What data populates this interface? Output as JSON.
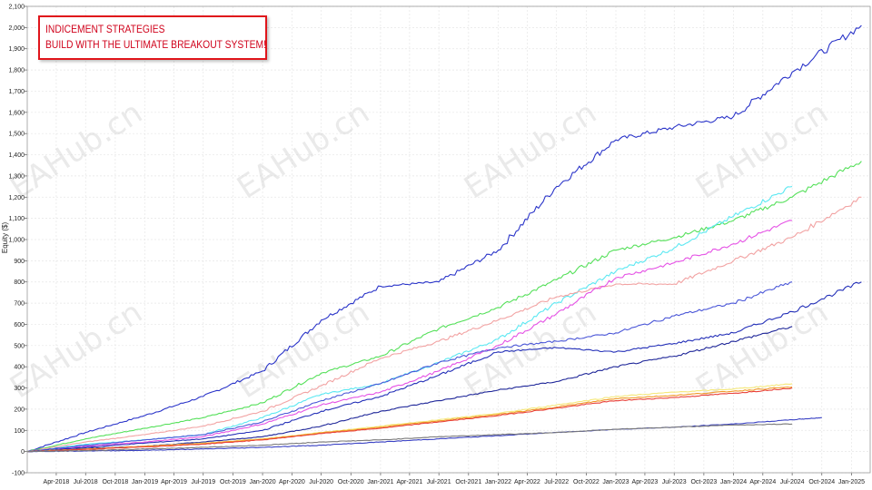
{
  "chart_data": {
    "type": "line",
    "title_lines": [
      "INDICEMENT STRATEGIES",
      "BUILD WITH THE ULTIMATE BREAKOUT SYSTEM!"
    ],
    "ylabel": "Equity ($)",
    "ylim": [
      -100,
      2100
    ],
    "y_ticks": [
      "-100",
      "0",
      "100",
      "200",
      "300",
      "400",
      "500",
      "600",
      "700",
      "800",
      "900",
      "1,000",
      "1,100",
      "1,200",
      "1,300",
      "1,400",
      "1,500",
      "1,600",
      "1,700",
      "1,800",
      "1,900",
      "2,000",
      "2,100"
    ],
    "x_ticks": [
      {
        "label": "Apr-2018",
        "date": "2018-04-01"
      },
      {
        "label": "Jul-2018",
        "date": "2018-07-01"
      },
      {
        "label": "Oct-2018",
        "date": "2018-10-01"
      },
      {
        "label": "Jan-2019",
        "date": "2019-01-01"
      },
      {
        "label": "Apr-2019",
        "date": "2019-04-01"
      },
      {
        "label": "Jul-2019",
        "date": "2019-07-01"
      },
      {
        "label": "Oct-2019",
        "date": "2019-10-01"
      },
      {
        "label": "Jan-2020",
        "date": "2020-01-01"
      },
      {
        "label": "Apr-2020",
        "date": "2020-04-01"
      },
      {
        "label": "Jul-2020",
        "date": "2020-07-01"
      },
      {
        "label": "Oct-2020",
        "date": "2020-10-01"
      },
      {
        "label": "Jan-2021",
        "date": "2021-01-01"
      },
      {
        "label": "Apr-2021",
        "date": "2021-04-01"
      },
      {
        "label": "Jul-2021",
        "date": "2021-07-01"
      },
      {
        "label": "Oct-2021",
        "date": "2021-10-01"
      },
      {
        "label": "Jan-2022",
        "date": "2022-01-01"
      },
      {
        "label": "Apr-2022",
        "date": "2022-04-01"
      },
      {
        "label": "Jul-2022",
        "date": "2022-07-01"
      },
      {
        "label": "Oct-2022",
        "date": "2022-10-01"
      },
      {
        "label": "Jan-2023",
        "date": "2023-01-01"
      },
      {
        "label": "Apr-2023",
        "date": "2023-04-01"
      },
      {
        "label": "Jul-2023",
        "date": "2023-07-01"
      },
      {
        "label": "Oct-2023",
        "date": "2023-10-01"
      },
      {
        "label": "Jan-2024",
        "date": "2024-01-01"
      },
      {
        "label": "Apr-2024",
        "date": "2024-04-01"
      },
      {
        "label": "Jul-2024",
        "date": "2024-07-01"
      },
      {
        "label": "Oct-2024",
        "date": "2024-10-01"
      },
      {
        "label": "Jan-2025",
        "date": "2025-01-01"
      }
    ],
    "grid": true,
    "legend": "none",
    "watermark": "EAHub.cn",
    "series": [
      {
        "color": "#2b35c9",
        "x": [
          "2018-01-01",
          "2018-07-01",
          "2019-01-01",
          "2019-07-01",
          "2020-01-01",
          "2020-07-01",
          "2021-01-01",
          "2021-07-01",
          "2022-01-01",
          "2022-07-01",
          "2023-01-01",
          "2023-07-01",
          "2024-01-01",
          "2024-07-01",
          "2025-02-01"
        ],
        "y": [
          0,
          90,
          170,
          260,
          380,
          620,
          780,
          800,
          950,
          1250,
          1470,
          1530,
          1580,
          1790,
          2010
        ]
      },
      {
        "color": "#55e05a",
        "x": [
          "2018-01-01",
          "2018-07-01",
          "2019-01-01",
          "2019-07-01",
          "2020-01-01",
          "2020-07-01",
          "2021-01-01",
          "2021-07-01",
          "2022-01-01",
          "2022-07-01",
          "2023-01-01",
          "2023-07-01",
          "2024-01-01",
          "2024-07-01",
          "2025-02-01"
        ],
        "y": [
          0,
          60,
          110,
          160,
          230,
          370,
          450,
          580,
          680,
          810,
          950,
          1010,
          1090,
          1200,
          1370
        ]
      },
      {
        "color": "#5ce8f2",
        "x": [
          "2018-01-01",
          "2018-07-01",
          "2019-01-01",
          "2019-07-01",
          "2020-01-01",
          "2020-07-01",
          "2021-01-01",
          "2021-07-01",
          "2022-01-01",
          "2022-07-01",
          "2023-01-01",
          "2023-07-01",
          "2024-01-01",
          "2024-07-01"
        ],
        "y": [
          0,
          35,
          55,
          80,
          160,
          270,
          320,
          420,
          530,
          700,
          850,
          960,
          1110,
          1250
        ]
      },
      {
        "color": "#f2a3a3",
        "x": [
          "2018-01-01",
          "2018-07-01",
          "2019-01-01",
          "2019-07-01",
          "2020-01-01",
          "2020-07-01",
          "2021-01-01",
          "2021-07-01",
          "2022-01-01",
          "2022-07-01",
          "2023-01-01",
          "2023-07-01",
          "2024-01-01",
          "2024-07-01",
          "2025-02-01"
        ],
        "y": [
          0,
          45,
          80,
          120,
          190,
          310,
          440,
          520,
          620,
          730,
          790,
          790,
          900,
          1010,
          1200
        ]
      },
      {
        "color": "#e552e5",
        "x": [
          "2018-01-01",
          "2018-07-01",
          "2019-01-01",
          "2019-07-01",
          "2020-01-01",
          "2020-07-01",
          "2021-01-01",
          "2021-07-01",
          "2022-01-01",
          "2022-07-01",
          "2023-01-01",
          "2023-07-01",
          "2024-01-01",
          "2024-07-01"
        ],
        "y": [
          0,
          25,
          45,
          70,
          130,
          220,
          280,
          380,
          500,
          650,
          820,
          890,
          980,
          1090
        ]
      },
      {
        "color": "#4c58d8",
        "x": [
          "2018-01-01",
          "2018-07-01",
          "2019-01-01",
          "2019-07-01",
          "2020-01-01",
          "2020-07-01",
          "2021-01-01",
          "2021-07-01",
          "2022-01-01",
          "2022-07-01",
          "2023-01-01",
          "2023-07-01",
          "2024-01-01",
          "2024-07-01"
        ],
        "y": [
          0,
          30,
          55,
          80,
          140,
          240,
          320,
          420,
          490,
          520,
          560,
          640,
          700,
          800
        ]
      },
      {
        "color": "#2430b8",
        "x": [
          "2018-01-01",
          "2018-07-01",
          "2019-01-01",
          "2019-07-01",
          "2020-01-01",
          "2020-07-01",
          "2021-01-01",
          "2021-07-01",
          "2022-01-01",
          "2022-07-01",
          "2023-01-01",
          "2023-07-01",
          "2024-01-01",
          "2024-07-01",
          "2025-02-01"
        ],
        "y": [
          0,
          20,
          40,
          60,
          100,
          190,
          260,
          360,
          470,
          490,
          470,
          510,
          560,
          660,
          800
        ]
      },
      {
        "color": "#1f2799",
        "x": [
          "2018-01-01",
          "2018-07-01",
          "2019-01-01",
          "2019-07-01",
          "2020-01-01",
          "2020-07-01",
          "2021-01-01",
          "2021-07-01",
          "2022-01-01",
          "2022-07-01",
          "2023-01-01",
          "2023-07-01",
          "2024-01-01",
          "2024-07-01"
        ],
        "y": [
          0,
          15,
          25,
          45,
          70,
          120,
          190,
          240,
          290,
          330,
          400,
          450,
          520,
          590
        ]
      },
      {
        "color": "#f5e87a",
        "x": [
          "2018-01-01",
          "2018-07-01",
          "2019-01-01",
          "2019-07-01",
          "2020-01-01",
          "2020-07-01",
          "2021-01-01",
          "2021-07-01",
          "2022-01-01",
          "2022-07-01",
          "2023-01-01",
          "2023-07-01",
          "2024-01-01",
          "2024-07-01"
        ],
        "y": [
          0,
          12,
          25,
          40,
          60,
          90,
          120,
          150,
          180,
          220,
          260,
          280,
          295,
          320
        ]
      },
      {
        "color": "#f09a2a",
        "x": [
          "2018-01-01",
          "2018-07-01",
          "2019-01-01",
          "2019-07-01",
          "2020-01-01",
          "2020-07-01",
          "2021-01-01",
          "2021-07-01",
          "2022-01-01",
          "2022-07-01",
          "2023-01-01",
          "2023-07-01",
          "2024-01-01",
          "2024-07-01"
        ],
        "y": [
          0,
          12,
          25,
          38,
          58,
          88,
          115,
          145,
          175,
          210,
          250,
          265,
          285,
          305
        ]
      },
      {
        "color": "#e8413a",
        "x": [
          "2018-01-01",
          "2018-07-01",
          "2019-01-01",
          "2019-07-01",
          "2020-01-01",
          "2020-07-01",
          "2021-01-01",
          "2021-07-01",
          "2022-01-01",
          "2022-07-01",
          "2023-01-01",
          "2023-07-01",
          "2024-01-01",
          "2024-07-01"
        ],
        "y": [
          0,
          10,
          22,
          35,
          55,
          85,
          110,
          140,
          170,
          205,
          240,
          255,
          275,
          300
        ]
      },
      {
        "color": "#3a42c4",
        "x": [
          "2018-01-01",
          "2018-07-01",
          "2019-01-01",
          "2019-07-01",
          "2020-01-01",
          "2020-07-01",
          "2021-01-01",
          "2021-07-01",
          "2022-01-01",
          "2022-07-01",
          "2023-01-01",
          "2023-07-01",
          "2024-01-01",
          "2024-07-01",
          "2024-10-01"
        ],
        "y": [
          0,
          3,
          6,
          12,
          20,
          30,
          45,
          60,
          75,
          90,
          105,
          115,
          130,
          150,
          160
        ]
      },
      {
        "color": "#7a7a7a",
        "x": [
          "2018-01-01",
          "2018-07-01",
          "2019-01-01",
          "2019-07-01",
          "2020-01-01",
          "2020-07-01",
          "2021-01-01",
          "2021-07-01",
          "2022-01-01",
          "2022-07-01",
          "2023-01-01",
          "2023-07-01",
          "2024-01-01",
          "2024-07-01"
        ],
        "y": [
          0,
          5,
          12,
          20,
          30,
          45,
          55,
          70,
          80,
          90,
          105,
          115,
          125,
          130
        ]
      }
    ]
  }
}
